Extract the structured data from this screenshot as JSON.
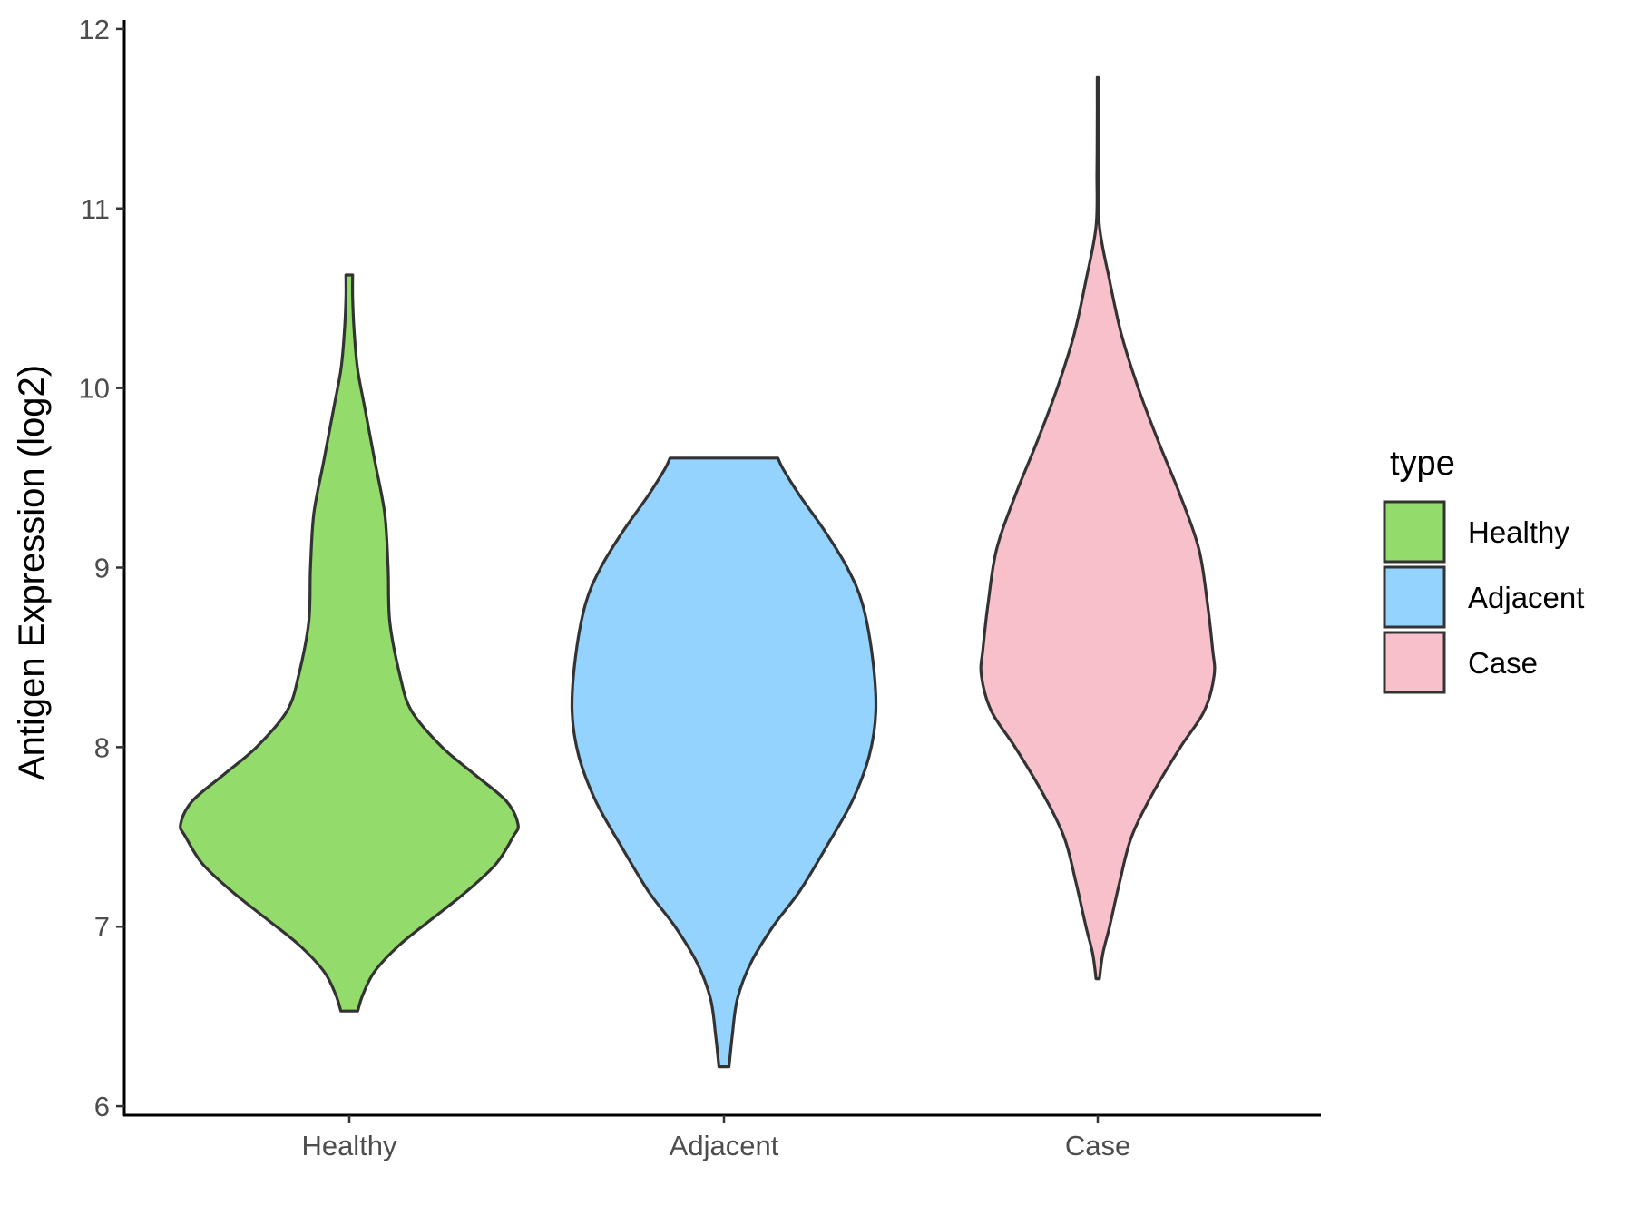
{
  "chart_data": {
    "type": "violin",
    "title": "",
    "xlabel": "",
    "ylabel": "Antigen Expression (log2)",
    "ylim": [
      5.95,
      12.05
    ],
    "yticks": [
      6,
      7,
      8,
      9,
      10,
      11,
      12
    ],
    "categories": [
      "Healthy",
      "Adjacent",
      "Case"
    ],
    "grid": false,
    "legend": {
      "title": "type",
      "position": "right",
      "entries": [
        "Healthy",
        "Adjacent",
        "Case"
      ]
    },
    "series": [
      {
        "name": "Healthy",
        "color": "#93DB6A",
        "min": 6.53,
        "max": 10.63,
        "profile": [
          [
            6.53,
            0.05
          ],
          [
            6.62,
            0.08
          ],
          [
            6.75,
            0.15
          ],
          [
            6.9,
            0.3
          ],
          [
            7.05,
            0.5
          ],
          [
            7.2,
            0.7
          ],
          [
            7.35,
            0.87
          ],
          [
            7.5,
            0.97
          ],
          [
            7.57,
            1.0
          ],
          [
            7.7,
            0.93
          ],
          [
            7.85,
            0.74
          ],
          [
            8.0,
            0.55
          ],
          [
            8.2,
            0.37
          ],
          [
            8.4,
            0.3
          ],
          [
            8.7,
            0.24
          ],
          [
            9.0,
            0.23
          ],
          [
            9.3,
            0.21
          ],
          [
            9.6,
            0.15
          ],
          [
            9.9,
            0.09
          ],
          [
            10.1,
            0.05
          ],
          [
            10.3,
            0.03
          ],
          [
            10.5,
            0.02
          ],
          [
            10.63,
            0.02
          ]
        ]
      },
      {
        "name": "Adjacent",
        "color": "#94D3FD",
        "min": 6.22,
        "max": 9.61,
        "profile": [
          [
            6.22,
            0.03
          ],
          [
            6.4,
            0.05
          ],
          [
            6.6,
            0.08
          ],
          [
            6.8,
            0.16
          ],
          [
            7.0,
            0.29
          ],
          [
            7.2,
            0.45
          ],
          [
            7.45,
            0.61
          ],
          [
            7.7,
            0.76
          ],
          [
            7.95,
            0.86
          ],
          [
            8.2,
            0.9
          ],
          [
            8.5,
            0.88
          ],
          [
            8.8,
            0.82
          ],
          [
            9.0,
            0.73
          ],
          [
            9.2,
            0.6
          ],
          [
            9.4,
            0.45
          ],
          [
            9.55,
            0.35
          ],
          [
            9.61,
            0.32
          ]
        ]
      },
      {
        "name": "Case",
        "color": "#F7C0CB",
        "min": 6.71,
        "max": 11.73,
        "profile": [
          [
            6.71,
            0.01
          ],
          [
            6.85,
            0.03
          ],
          [
            7.0,
            0.07
          ],
          [
            7.25,
            0.13
          ],
          [
            7.5,
            0.2
          ],
          [
            7.75,
            0.33
          ],
          [
            8.0,
            0.49
          ],
          [
            8.2,
            0.63
          ],
          [
            8.4,
            0.69
          ],
          [
            8.55,
            0.68
          ],
          [
            8.8,
            0.65
          ],
          [
            9.1,
            0.6
          ],
          [
            9.4,
            0.49
          ],
          [
            9.7,
            0.36
          ],
          [
            10.0,
            0.24
          ],
          [
            10.3,
            0.14
          ],
          [
            10.6,
            0.07
          ],
          [
            10.9,
            0.01
          ],
          [
            11.2,
            0.005
          ],
          [
            11.5,
            0.003
          ],
          [
            11.73,
            0.003
          ]
        ]
      }
    ]
  }
}
